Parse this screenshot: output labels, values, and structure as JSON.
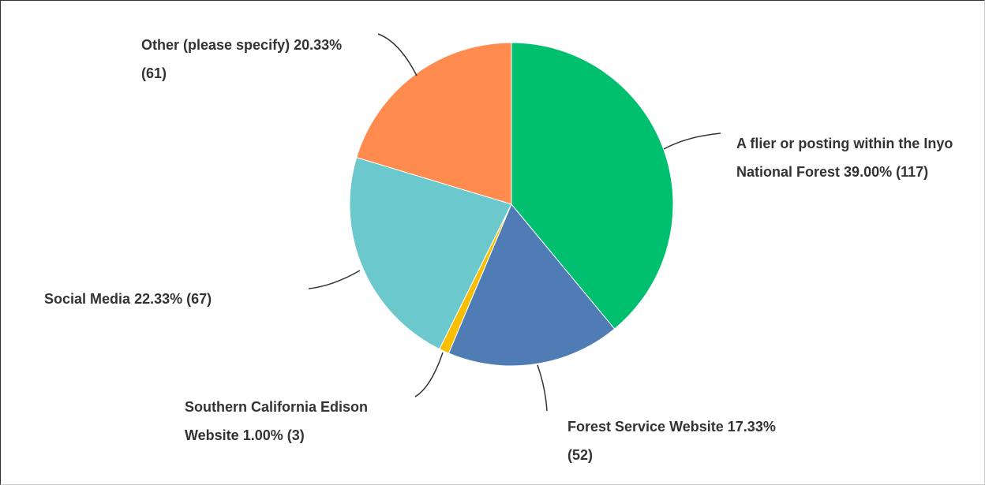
{
  "chart_data": {
    "type": "pie",
    "categories": [
      "A flier or posting within the Inyo National Forest",
      "Forest Service Website",
      "Southern California Edison Website",
      "Social Media",
      "Other (please specify)"
    ],
    "values": [
      39.0,
      17.33,
      1.0,
      22.33,
      20.33
    ],
    "value_labels": [
      "39.00%",
      "17.33%",
      "1.00%",
      "22.33%",
      "20.33%"
    ],
    "counts": [
      117,
      52,
      3,
      67,
      61
    ],
    "count_labels": [
      "(117)",
      "(52)",
      "(3)",
      "(67)",
      "(61)"
    ],
    "colors": [
      "#00bf6f",
      "#507cb6",
      "#f9be00",
      "#6bc8cd",
      "#ff8b4f"
    ]
  }
}
